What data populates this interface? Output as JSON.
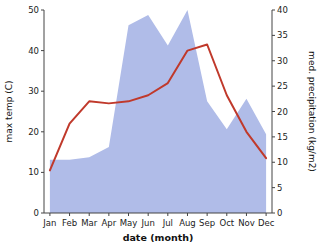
{
  "chart_data": {
    "type": "line",
    "categories": [
      "Jan",
      "Feb",
      "Mar",
      "Apr",
      "May",
      "Jun",
      "Jul",
      "Aug",
      "Sep",
      "Oct",
      "Nov",
      "Dec"
    ],
    "series": [
      {
        "type": "area",
        "axis": "y2",
        "color": "#b0bce8",
        "values": [
          10.5,
          10.5,
          11.0,
          13.0,
          37.0,
          39.0,
          33.0,
          40.0,
          22.0,
          16.5,
          22.5,
          15.5
        ]
      },
      {
        "type": "line",
        "color": "#c0392b",
        "values": [
          10.5,
          22.0,
          27.5,
          27.0,
          27.5,
          29.0,
          32.0,
          40.0,
          41.5,
          29.0,
          20.0,
          13.5
        ]
      }
    ],
    "xlabel": "date (month)",
    "ylabel": "max temp (C)",
    "y2label": "med. precipitation (kg/m2)",
    "ylim": [
      0,
      50
    ],
    "yticks": [
      0,
      10,
      20,
      30,
      40,
      50
    ],
    "y2lim": [
      0,
      40
    ],
    "y2ticks": [
      0,
      5,
      10,
      15,
      20,
      25,
      30,
      35,
      40
    ],
    "grid": false
  }
}
